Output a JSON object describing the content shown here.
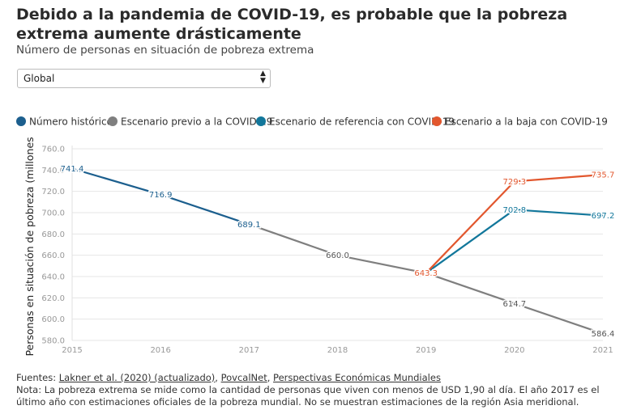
{
  "header": {
    "title": "Debido a la pandemia de COVID-19, es probable que la pobreza extrema aumente drásticamente",
    "subtitle": "Número de personas en situación de pobreza extrema"
  },
  "selector": {
    "value": "Global",
    "arrows": "▲▼"
  },
  "legend": [
    {
      "label": "Número histórico",
      "color": "#1c5f8e"
    },
    {
      "label": "Escenario previo a la COVID-19",
      "color": "#7f7f7f"
    },
    {
      "label": "Escenario de referencia con COVID-19",
      "color": "#12779b"
    },
    {
      "label": "Escenario a la baja con COVID-19",
      "color": "#e2572e"
    }
  ],
  "chart_data": {
    "type": "line",
    "ylabel": "Personas en situación de pobreza (millones)",
    "xlabel": "",
    "xlim": [
      2015,
      2021
    ],
    "ylim": [
      580,
      760
    ],
    "x_ticks": [
      "2015",
      "2016",
      "2017",
      "2018",
      "2019",
      "2020",
      "2021"
    ],
    "y_ticks": [
      "580.0",
      "600.0",
      "620.0",
      "640.0",
      "660.0",
      "680.0",
      "700.0",
      "720.0",
      "740.0",
      "760.0"
    ],
    "grid": true,
    "legend_position": "top",
    "series": [
      {
        "name": "Número histórico",
        "color": "#1c5f8e",
        "points": [
          [
            2015,
            741.4
          ],
          [
            2016,
            716.9
          ],
          [
            2017,
            689.1
          ]
        ],
        "labels": [
          "741.4",
          "716.9",
          "689.1"
        ]
      },
      {
        "name": "Escenario previo a la COVID-19",
        "color": "#7f7f7f",
        "points": [
          [
            2017,
            689.1
          ],
          [
            2018,
            660.0
          ],
          [
            2019,
            643.3
          ],
          [
            2020,
            614.7
          ],
          [
            2021,
            586.4
          ]
        ],
        "labels": [
          "",
          "660.0",
          "",
          "614.7",
          "586.4"
        ]
      },
      {
        "name": "Escenario de referencia con COVID-19",
        "color": "#12779b",
        "points": [
          [
            2019,
            643.3
          ],
          [
            2020,
            702.8
          ],
          [
            2021,
            697.2
          ]
        ],
        "labels": [
          "",
          "702.8",
          "697.2"
        ]
      },
      {
        "name": "Escenario a la baja con COVID-19",
        "color": "#e2572e",
        "points": [
          [
            2019,
            643.3
          ],
          [
            2020,
            729.3
          ],
          [
            2021,
            735.7
          ]
        ],
        "labels": [
          "643.3",
          "729.3",
          "735.7"
        ]
      }
    ]
  },
  "footer": {
    "sources_prefix": "Fuentes: ",
    "link1": "Lakner et al. (2020) (actualizado)",
    "sep1": ", ",
    "link2": "PovcalNet",
    "sep2": ", ",
    "link3": "Perspectivas Económicas Mundiales",
    "note": "Nota: La pobreza extrema se mide como la cantidad de personas que viven con menos de USD 1,90 al día. El año 2017 es el último año con estimaciones oficiales de la pobreza mundial. No se muestran estimaciones de la región Asia meridional."
  }
}
